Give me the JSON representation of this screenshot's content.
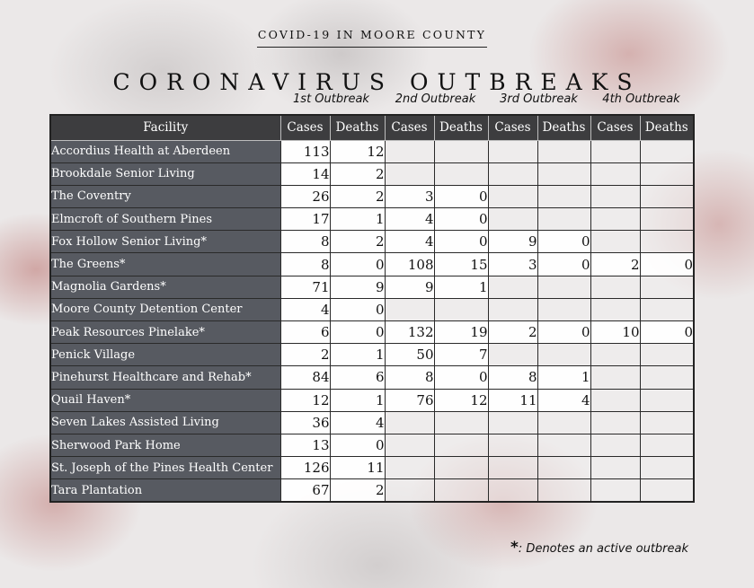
{
  "kicker": "COVID-19 IN MOORE COUNTY",
  "title": "CORONAVIRUS OUTBREAKS",
  "outbreak_labels": [
    "1st Outbreak",
    "2nd Outbreak",
    "3rd Outbreak",
    "4th Outbreak"
  ],
  "columns": {
    "facility": "Facility",
    "cases": "Cases",
    "deaths": "Deaths"
  },
  "rows": [
    {
      "facility": "Accordius Health at Aberdeen",
      "values": [
        "113",
        "12",
        "",
        "",
        "",
        "",
        "",
        ""
      ]
    },
    {
      "facility": "Brookdale Senior Living",
      "values": [
        "14",
        "2",
        "",
        "",
        "",
        "",
        "",
        ""
      ]
    },
    {
      "facility": "The Coventry",
      "values": [
        "26",
        "2",
        "3",
        "0",
        "",
        "",
        "",
        ""
      ]
    },
    {
      "facility": "Elmcroft of Southern Pines",
      "values": [
        "17",
        "1",
        "4",
        "0",
        "",
        "",
        "",
        ""
      ]
    },
    {
      "facility": "Fox Hollow Senior Living*",
      "values": [
        "8",
        "2",
        "4",
        "0",
        "9",
        "0",
        "",
        ""
      ]
    },
    {
      "facility": "The Greens*",
      "values": [
        "8",
        "0",
        "108",
        "15",
        "3",
        "0",
        "2",
        "0"
      ]
    },
    {
      "facility": "Magnolia Gardens*",
      "values": [
        "71",
        "9",
        "9",
        "1",
        "",
        "",
        "",
        ""
      ]
    },
    {
      "facility": "Moore County Detention Center",
      "values": [
        "4",
        "0",
        "",
        "",
        "",
        "",
        "",
        ""
      ]
    },
    {
      "facility": "Peak Resources Pinelake*",
      "values": [
        "6",
        "0",
        "132",
        "19",
        "2",
        "0",
        "10",
        "0"
      ]
    },
    {
      "facility": "Penick Village",
      "values": [
        "2",
        "1",
        "50",
        "7",
        "",
        "",
        "",
        ""
      ]
    },
    {
      "facility": "Pinehurst Healthcare and Rehab*",
      "values": [
        "84",
        "6",
        "8",
        "0",
        "8",
        "1",
        "",
        ""
      ]
    },
    {
      "facility": "Quail Haven*",
      "values": [
        "12",
        "1",
        "76",
        "12",
        "11",
        "4",
        "",
        ""
      ]
    },
    {
      "facility": "Seven Lakes Assisted Living",
      "values": [
        "36",
        "4",
        "",
        "",
        "",
        "",
        "",
        ""
      ]
    },
    {
      "facility": "Sherwood Park Home",
      "values": [
        "13",
        "0",
        "",
        "",
        "",
        "",
        "",
        ""
      ]
    },
    {
      "facility": "St. Joseph of the Pines Health Center",
      "values": [
        "126",
        "11",
        "",
        "",
        "",
        "",
        "",
        ""
      ]
    },
    {
      "facility": "Tara Plantation",
      "values": [
        "67",
        "2",
        "",
        "",
        "",
        "",
        "",
        ""
      ]
    }
  ],
  "footnote": {
    "star": "*",
    "text": ": Denotes an active outbreak"
  }
}
